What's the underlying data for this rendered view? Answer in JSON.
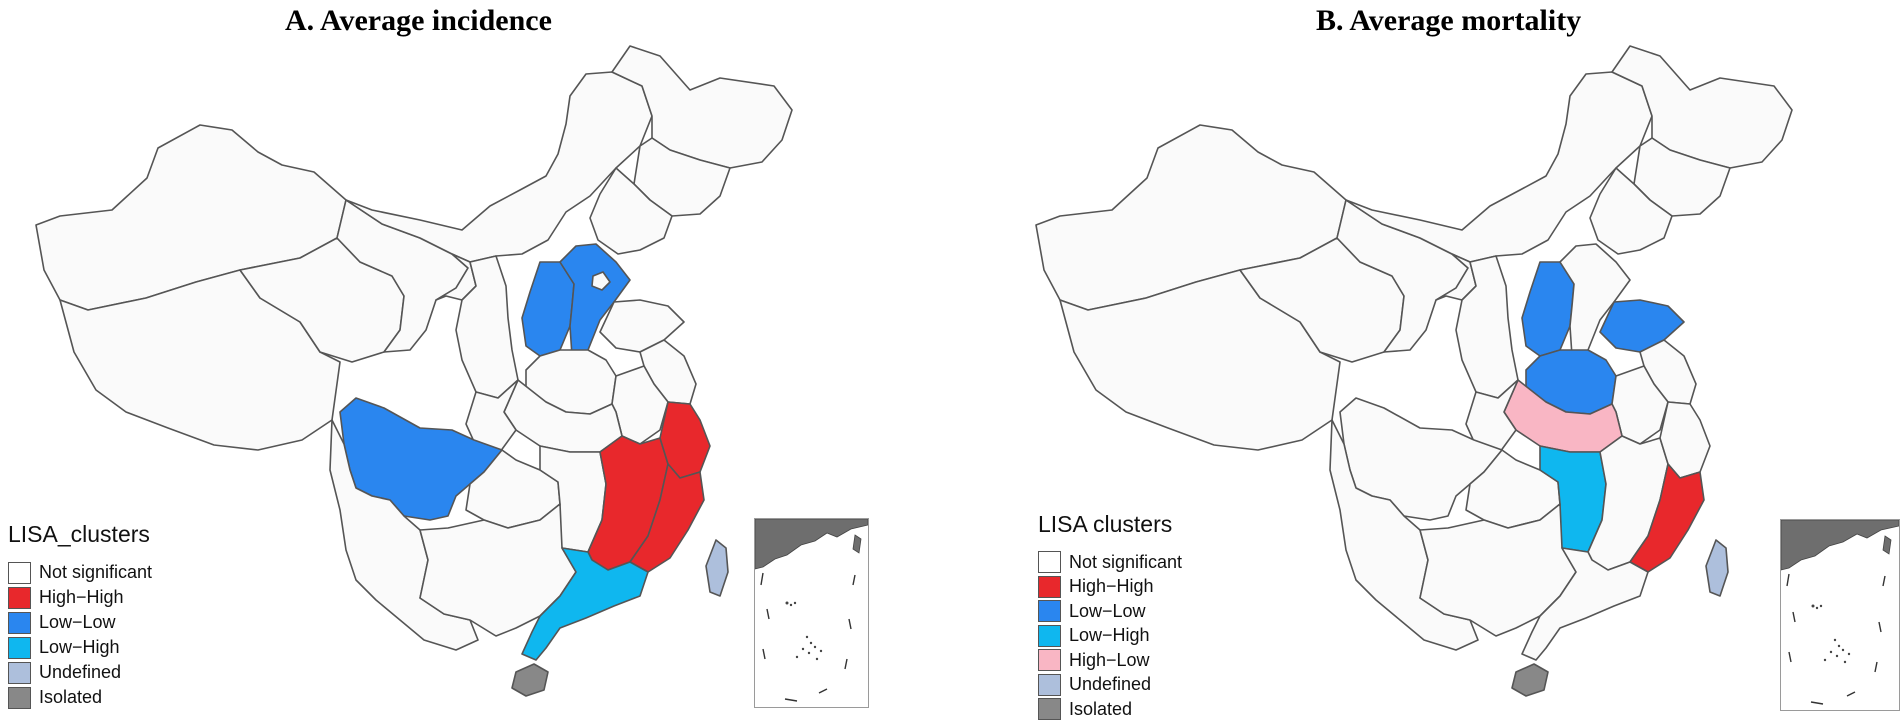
{
  "panels": [
    {
      "title": "A. Average incidence",
      "legend": {
        "title": "LISA_clusters",
        "items": [
          {
            "label": "Not significant",
            "color": "#ffffff"
          },
          {
            "label": "High−High",
            "color": "#e8282c"
          },
          {
            "label": "Low−Low",
            "color": "#2a86ef"
          },
          {
            "label": "Low−High",
            "color": "#0fb7ef"
          },
          {
            "label": "Undefined",
            "color": "#adbfdc"
          },
          {
            "label": "Isolated",
            "color": "#888888"
          }
        ]
      }
    },
    {
      "title": "B. Average mortality",
      "legend": {
        "title": "LISA  clusters",
        "items": [
          {
            "label": "Not significant",
            "color": "#ffffff"
          },
          {
            "label": "High−High",
            "color": "#e8282c"
          },
          {
            "label": "Low−Low",
            "color": "#2a86ef"
          },
          {
            "label": "Low−High",
            "color": "#0fb7ef"
          },
          {
            "label": "High−Low",
            "color": "#f9b6c4"
          },
          {
            "label": "Undefined",
            "color": "#adbfdc"
          },
          {
            "label": "Isolated",
            "color": "#888888"
          }
        ]
      }
    }
  ]
}
